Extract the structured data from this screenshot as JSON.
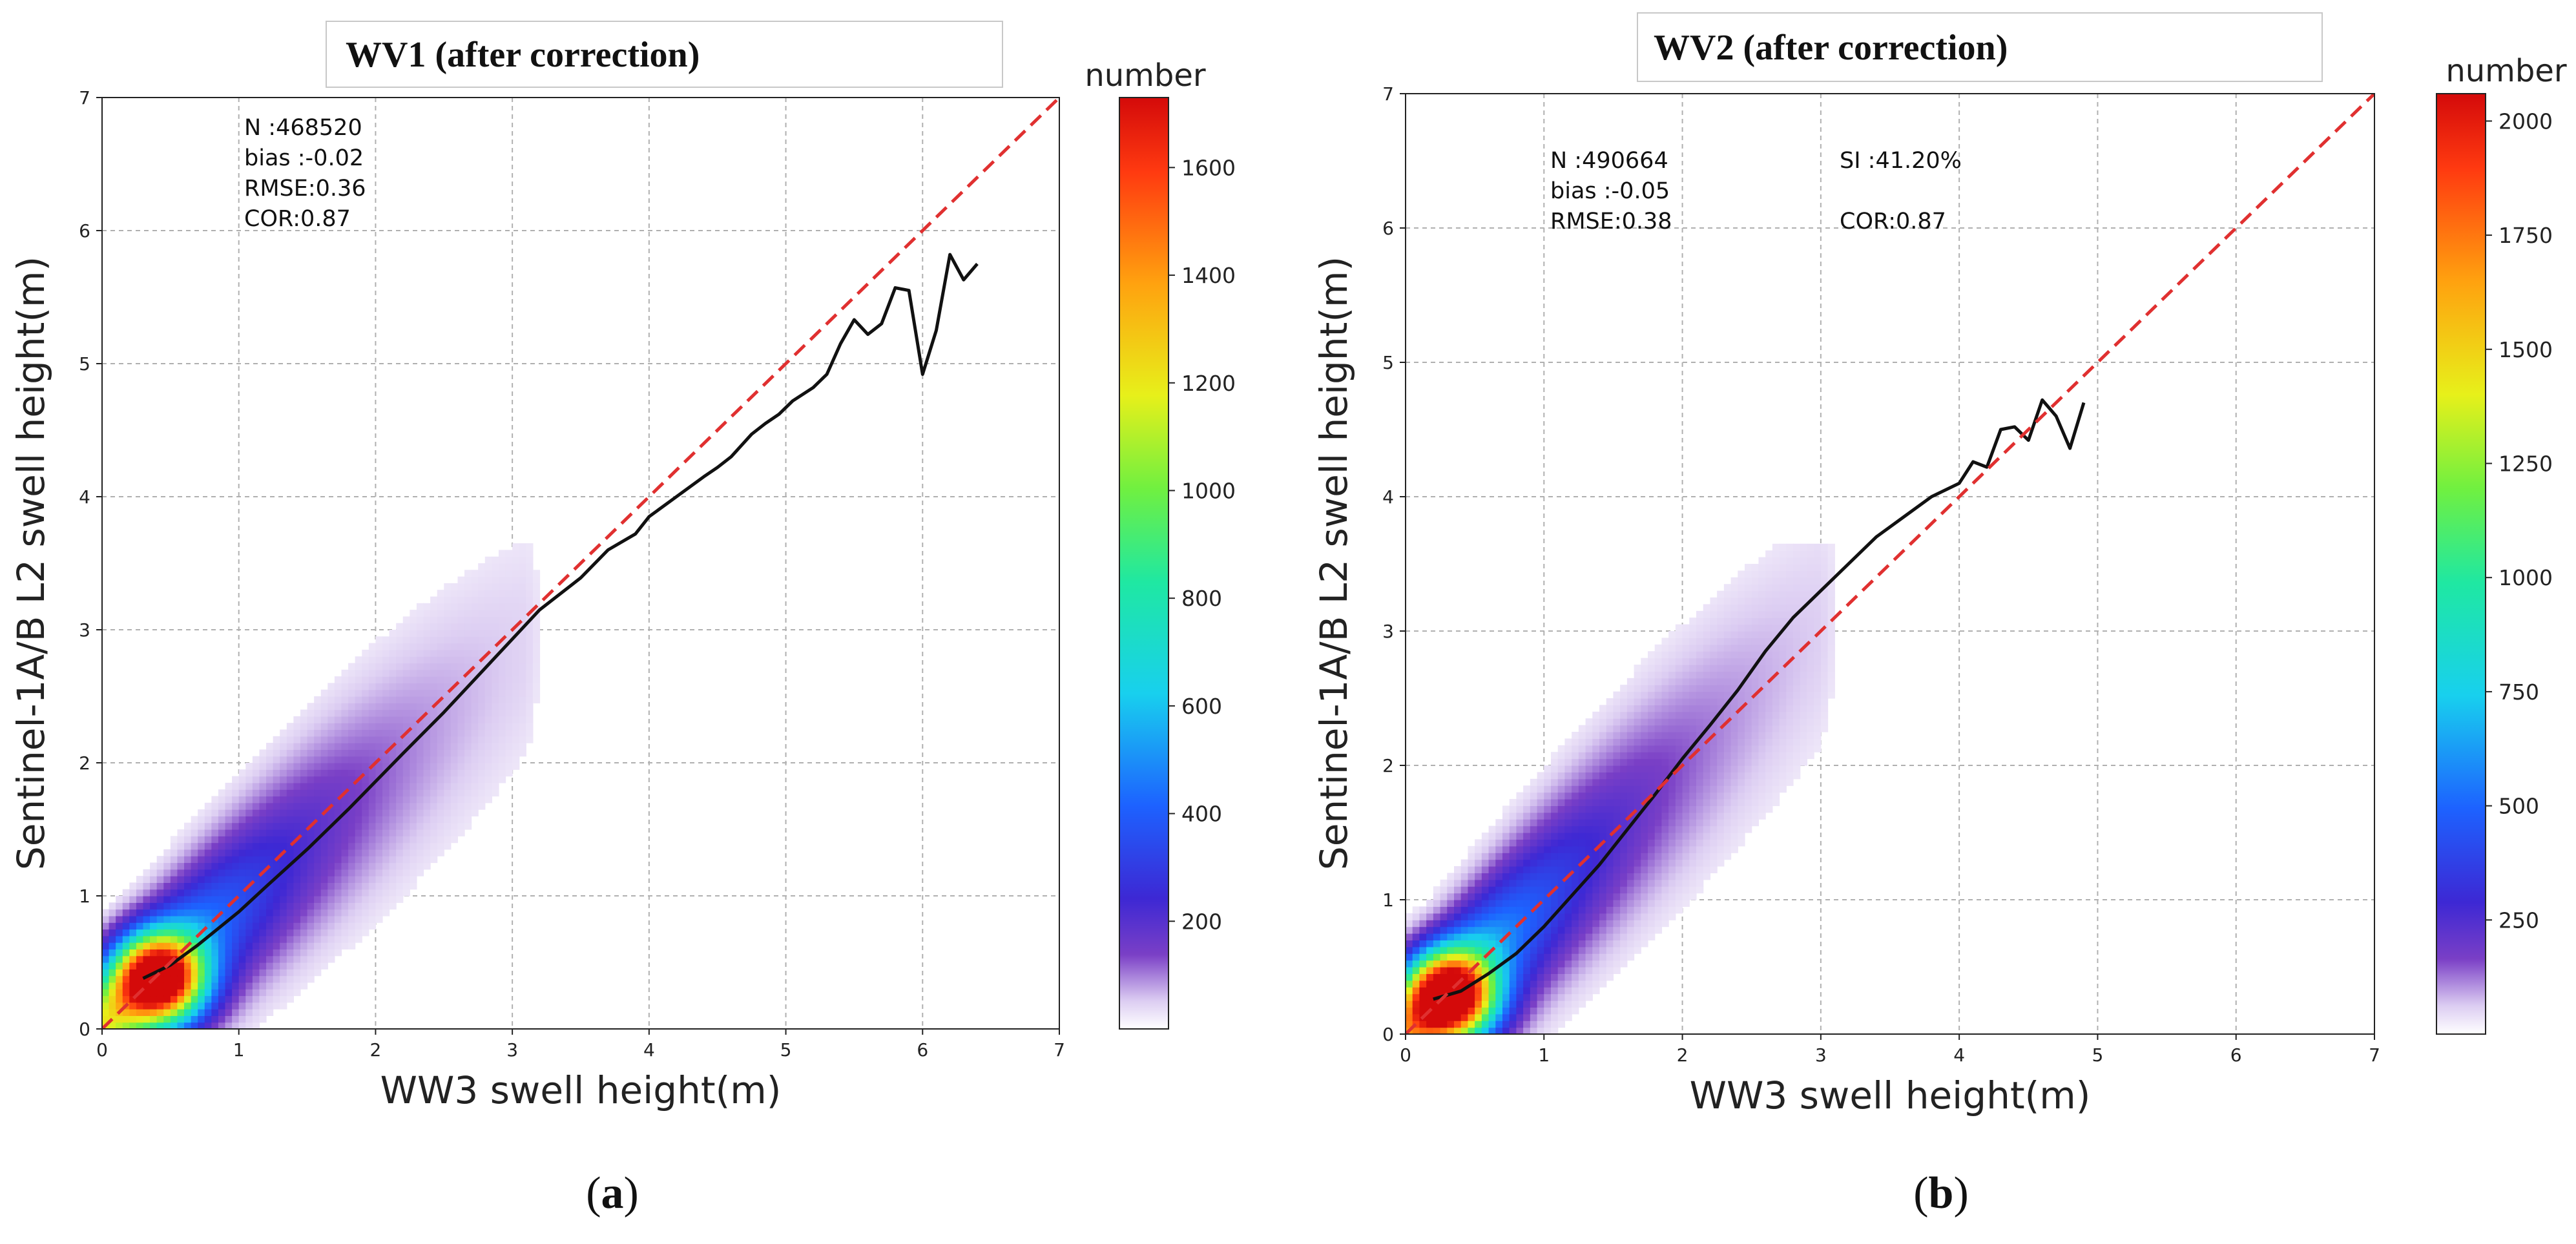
{
  "figure": {
    "panels": [
      {
        "id": "a",
        "title": "WV1 (after correction)",
        "sublabel_open": "(",
        "sublabel_letter": "a",
        "sublabel_close": ")",
        "colorbar_title": "number",
        "stats": [
          "N :468520",
          "bias :-0.02",
          "RMSE:0.36",
          "COR:0.87"
        ],
        "stats_right": []
      },
      {
        "id": "b",
        "title": "WV2 (after correction)",
        "sublabel_open": "(",
        "sublabel_letter": "b",
        "sublabel_close": ")",
        "colorbar_title": "number",
        "stats": [
          "N :490664",
          "bias :-0.05",
          "RMSE:0.38"
        ],
        "stats_right": [
          "SI :41.20%",
          "COR:0.87"
        ]
      }
    ]
  },
  "chart_data": [
    {
      "type": "heatmap",
      "title": "WV1 (after correction)",
      "xlabel": "WW3 swell height(m)",
      "ylabel": "Sentinel-1A/B L2 swell height(m)",
      "xlim": [
        0,
        7
      ],
      "ylim": [
        0,
        7
      ],
      "xticks": [
        0,
        1,
        2,
        3,
        4,
        5,
        6,
        7
      ],
      "yticks": [
        0,
        1,
        2,
        3,
        4,
        5,
        6,
        7
      ],
      "grid": true,
      "colorbar": {
        "label": "number",
        "min": 0,
        "max": 1730,
        "ticks": [
          200,
          400,
          600,
          800,
          1000,
          1200,
          1400,
          1600
        ]
      },
      "density": {
        "peak_x": 0.42,
        "peak_y": 0.38,
        "trend_slope": 0.93,
        "extent_max": 3.4
      },
      "series": [
        {
          "name": "mean curve",
          "color": "#111111",
          "x": [
            0.3,
            0.5,
            0.7,
            1.0,
            1.2,
            1.5,
            1.8,
            2.0,
            2.2,
            2.5,
            2.7,
            3.0,
            3.2,
            3.5,
            3.7,
            3.9,
            4.0,
            4.2,
            4.4,
            4.5,
            4.6,
            4.75,
            4.85,
            4.95,
            5.05,
            5.2,
            5.3,
            5.4,
            5.5,
            5.6,
            5.7,
            5.8,
            5.9,
            6.0,
            6.1,
            6.2,
            6.3,
            6.4
          ],
          "y": [
            0.38,
            0.48,
            0.63,
            0.88,
            1.07,
            1.35,
            1.65,
            1.86,
            2.07,
            2.38,
            2.6,
            2.93,
            3.15,
            3.39,
            3.6,
            3.72,
            3.85,
            4.0,
            4.15,
            4.22,
            4.3,
            4.47,
            4.55,
            4.62,
            4.72,
            4.82,
            4.92,
            5.15,
            5.33,
            5.22,
            5.3,
            5.57,
            5.55,
            4.92,
            5.25,
            5.82,
            5.63,
            5.75
          ]
        },
        {
          "name": "1:1 line",
          "color": "#e03030",
          "style": "dashed",
          "x": [
            0,
            7
          ],
          "y": [
            0,
            7
          ]
        }
      ]
    },
    {
      "type": "heatmap",
      "title": "WV2 (after correction)",
      "xlabel": "WW3 swell height(m)",
      "ylabel": "Sentinel-1A/B L2 swell height(m)",
      "xlim": [
        0,
        7
      ],
      "ylim": [
        0,
        7
      ],
      "xticks": [
        0,
        1,
        2,
        3,
        4,
        5,
        6,
        7
      ],
      "yticks": [
        0,
        1,
        2,
        3,
        4,
        5,
        6,
        7
      ],
      "grid": true,
      "colorbar": {
        "label": "number",
        "min": 0,
        "max": 2060,
        "ticks": [
          250,
          500,
          750,
          1000,
          1250,
          1500,
          1750,
          2000
        ]
      },
      "density": {
        "peak_x": 0.32,
        "peak_y": 0.28,
        "trend_slope": 1.02,
        "extent_max": 3.3
      },
      "series": [
        {
          "name": "mean curve",
          "color": "#111111",
          "x": [
            0.2,
            0.4,
            0.6,
            0.8,
            1.0,
            1.2,
            1.4,
            1.6,
            1.8,
            2.0,
            2.2,
            2.4,
            2.6,
            2.8,
            3.0,
            3.2,
            3.4,
            3.6,
            3.8,
            4.0,
            4.1,
            4.2,
            4.3,
            4.4,
            4.5,
            4.6,
            4.7,
            4.8,
            4.9
          ],
          "y": [
            0.26,
            0.32,
            0.45,
            0.6,
            0.8,
            1.03,
            1.26,
            1.52,
            1.78,
            2.05,
            2.3,
            2.56,
            2.85,
            3.1,
            3.3,
            3.5,
            3.7,
            3.85,
            4.0,
            4.1,
            4.26,
            4.22,
            4.5,
            4.52,
            4.42,
            4.72,
            4.6,
            4.36,
            4.7
          ]
        },
        {
          "name": "1:1 line",
          "color": "#e03030",
          "style": "dashed",
          "x": [
            0,
            7
          ],
          "y": [
            0,
            7
          ]
        }
      ]
    }
  ]
}
